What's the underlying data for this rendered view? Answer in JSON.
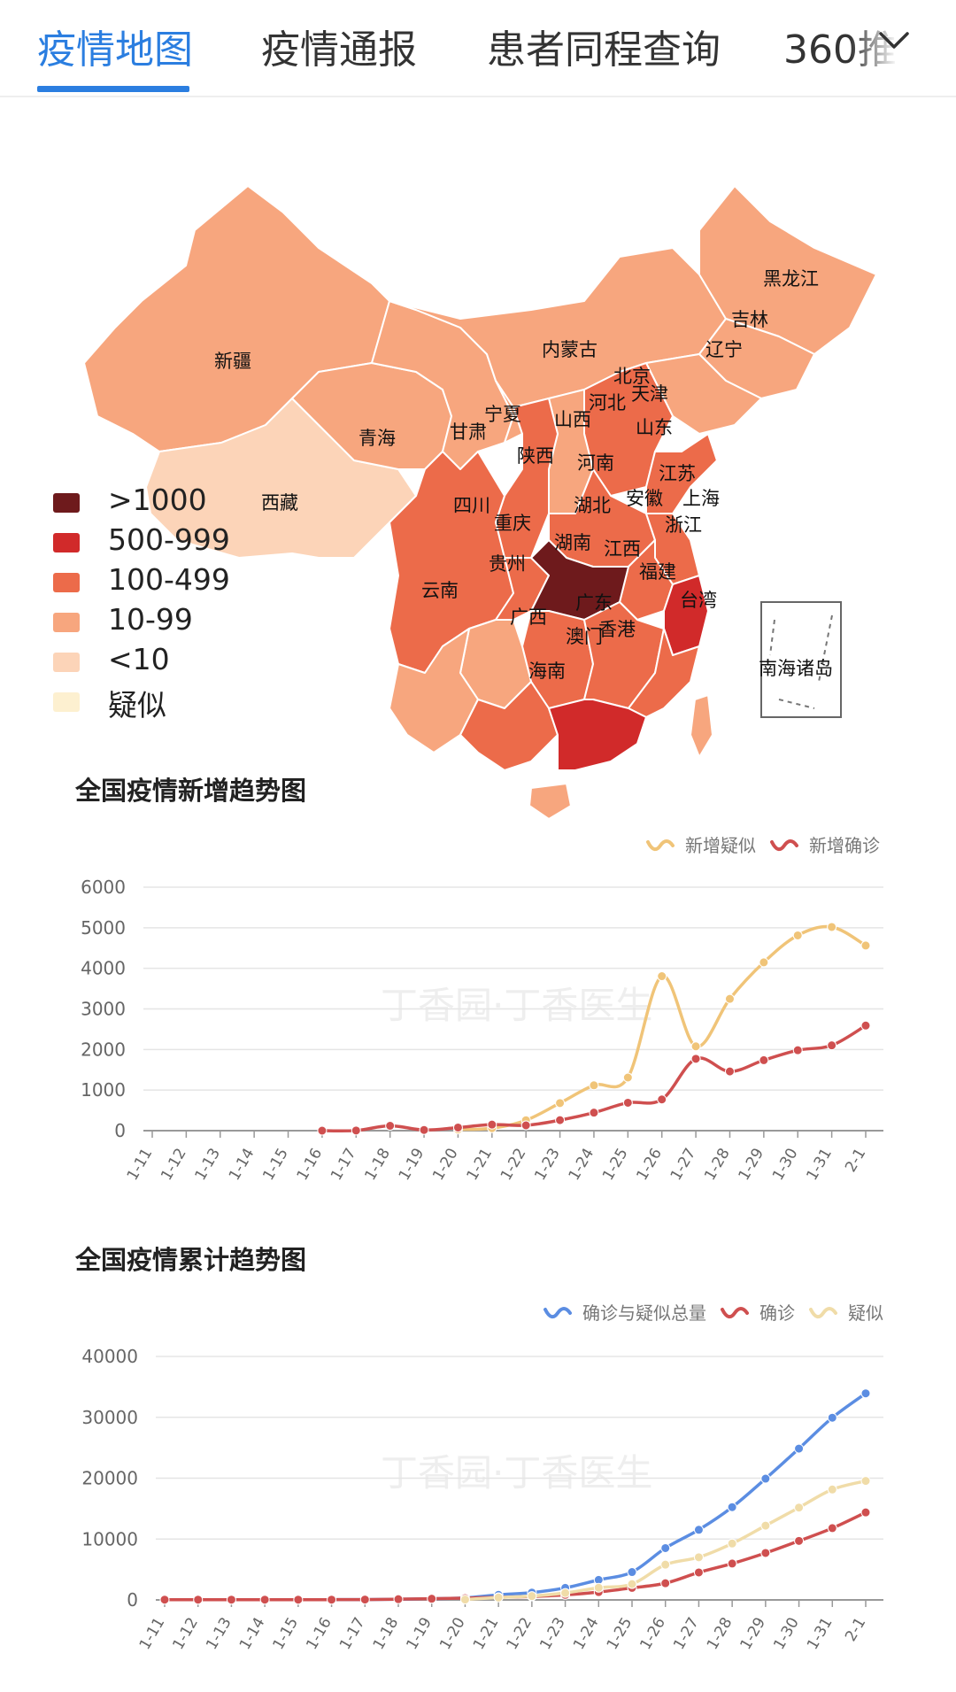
{
  "tabs": [
    {
      "label": "疫情地图",
      "active": true
    },
    {
      "label": "疫情通报"
    },
    {
      "label": "患者同程查询"
    },
    {
      "label": "360推"
    }
  ],
  "map": {
    "provinces": [
      "新疆",
      "西藏",
      "青海",
      "甘肃",
      "内蒙古",
      "宁夏",
      "黑龙江",
      "吉林",
      "辽宁",
      "北京",
      "天津",
      "河北",
      "山西",
      "陕西",
      "山东",
      "河南",
      "江苏",
      "安徽",
      "上海",
      "四川",
      "重庆",
      "湖北",
      "浙江",
      "湖南",
      "江西",
      "贵州",
      "云南",
      "福建",
      "广西",
      "广东",
      "台湾",
      "香港",
      "澳门",
      "海南",
      "南海诸岛"
    ],
    "legend": [
      {
        "label": ">1000",
        "color": "#6e1a1c"
      },
      {
        "label": "500-999",
        "color": "#d12a2a"
      },
      {
        "label": "100-499",
        "color": "#ec6b4a"
      },
      {
        "label": "10-99",
        "color": "#f7a67e"
      },
      {
        "label": "<10",
        "color": "#fcd4b8"
      },
      {
        "label": "疑似",
        "color": "#fdf0d0"
      }
    ]
  },
  "watermark": "丁香园·丁香医生",
  "charts": {
    "new": {
      "title": "全国疫情新增趋势图"
    },
    "cumulative": {
      "title": "全国疫情累计趋势图"
    }
  },
  "chart_data": [
    {
      "type": "line",
      "title": "全国疫情新增趋势图",
      "categories": [
        "1-11",
        "1-12",
        "1-13",
        "1-14",
        "1-15",
        "1-16",
        "1-17",
        "1-18",
        "1-19",
        "1-20",
        "1-21",
        "1-22",
        "1-23",
        "1-24",
        "1-25",
        "1-26",
        "1-27",
        "1-28",
        "1-29",
        "1-30",
        "1-31",
        "2-1"
      ],
      "ylim": [
        0,
        6000
      ],
      "yticks": [
        0,
        1000,
        2000,
        3000,
        4000,
        5000,
        6000
      ],
      "grid": true,
      "legend_position": "top-right",
      "series": [
        {
          "name": "新增疑似",
          "color": "#f0c478",
          "values": [
            null,
            null,
            null,
            null,
            null,
            null,
            null,
            null,
            null,
            30,
            60,
            257,
            680,
            1118,
            1309,
            3806,
            2077,
            3248,
            4148,
            4812,
            5019,
            4562
          ]
        },
        {
          "name": "新增确诊",
          "color": "#cf4f4f",
          "values": [
            null,
            null,
            null,
            null,
            null,
            0,
            4,
            120,
            17,
            77,
            149,
            131,
            259,
            444,
            688,
            769,
            1771,
            1459,
            1737,
            1982,
            2102,
            2590
          ]
        }
      ]
    },
    {
      "type": "line",
      "title": "全国疫情累计趋势图",
      "categories": [
        "1-11",
        "1-12",
        "1-13",
        "1-14",
        "1-15",
        "1-16",
        "1-17",
        "1-18",
        "1-19",
        "1-20",
        "1-21",
        "1-22",
        "1-23",
        "1-24",
        "1-25",
        "1-26",
        "1-27",
        "1-28",
        "1-29",
        "1-30",
        "1-31",
        "2-1"
      ],
      "ylim": [
        0,
        40000
      ],
      "yticks": [
        0,
        10000,
        20000,
        30000,
        40000
      ],
      "grid": true,
      "legend_position": "top-right",
      "series": [
        {
          "name": "确诊与疑似总量",
          "color": "#5b8de2",
          "values": [
            41,
            41,
            41,
            41,
            41,
            45,
            62,
            121,
            198,
            345,
            837,
            1204,
            1974,
            3291,
            4575,
            8516,
            11523,
            15238,
            19919,
            24858,
            29935,
            33931
          ]
        },
        {
          "name": "确诊",
          "color": "#cf4f4f",
          "values": [
            41,
            41,
            41,
            41,
            41,
            45,
            62,
            121,
            198,
            291,
            440,
            571,
            830,
            1287,
            1975,
            2744,
            4515,
            5974,
            7711,
            9692,
            11791,
            14380
          ]
        },
        {
          "name": "疑似",
          "color": "#f0dca8",
          "values": [
            null,
            null,
            null,
            null,
            null,
            null,
            null,
            null,
            null,
            54,
            397,
            633,
            1144,
            2004,
            2600,
            5794,
            7008,
            9264,
            12208,
            15166,
            18144,
            19551
          ]
        }
      ]
    }
  ]
}
